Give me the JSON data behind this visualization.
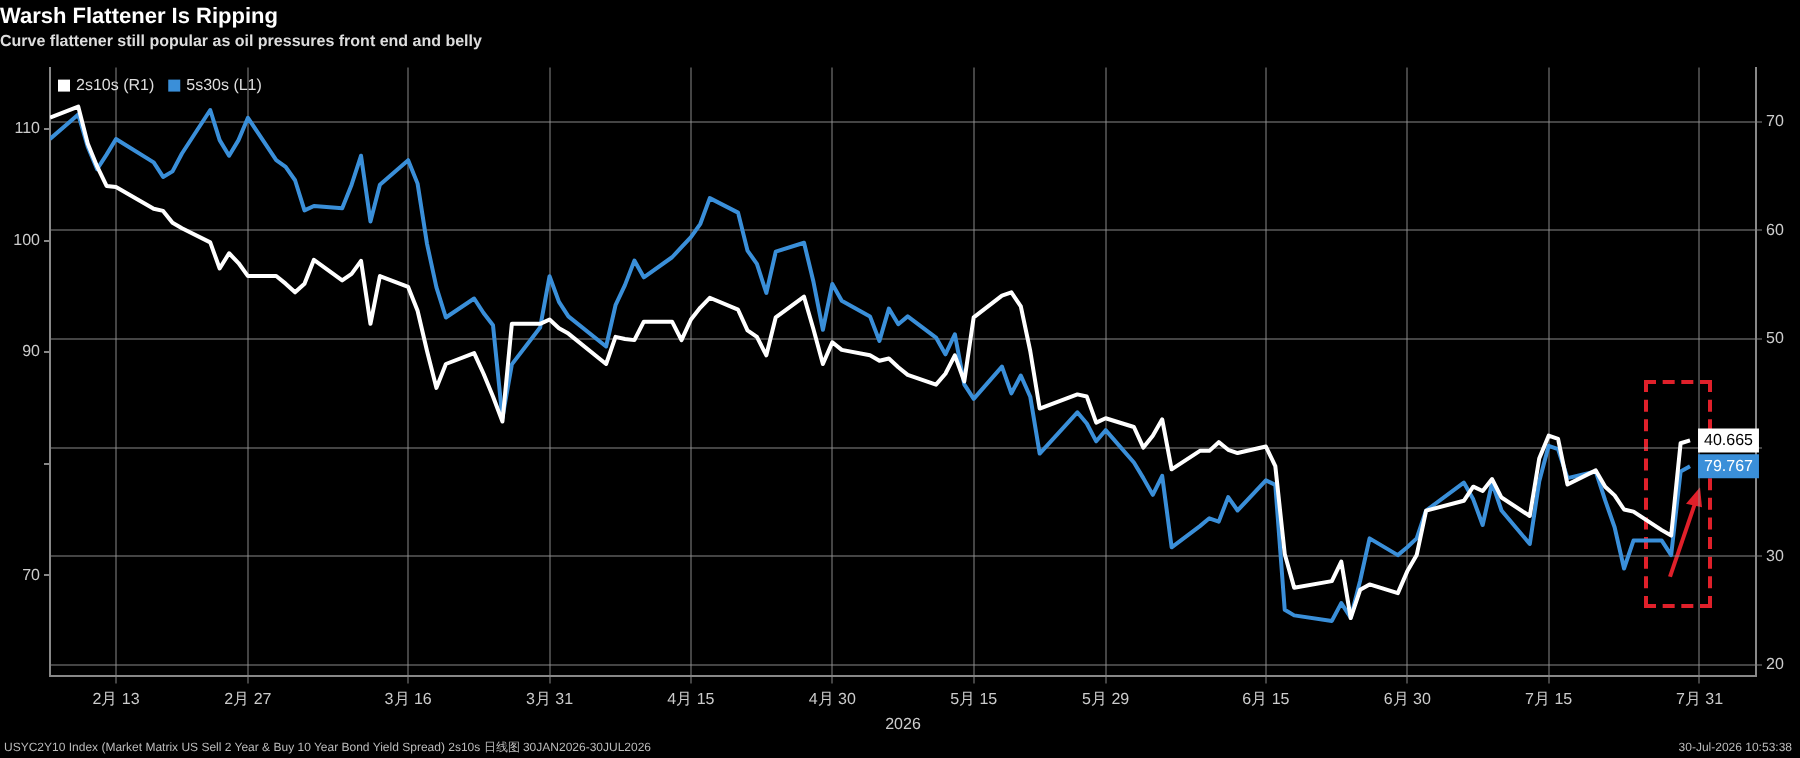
{
  "chart_data": {
    "type": "line",
    "title": "Warsh Flattener Is Ripping",
    "subtitle": "Curve flattener still popular as oil pressures front end and belly",
    "xlabel": "2026",
    "annotations": [
      "USYC2Y10 Index (Market Matrix US Sell 2 Year & Buy 10 Year Bond Yield Spread) 2s10s 日线图 30JAN2026-30JUL2026",
      "30-Jul-2026 10:53:38"
    ],
    "x": [
      "2026-02-06",
      "2026-02-09",
      "2026-02-10",
      "2026-02-11",
      "2026-02-12",
      "2026-02-13",
      "2026-02-17",
      "2026-02-18",
      "2026-02-19",
      "2026-02-20",
      "2026-02-23",
      "2026-02-24",
      "2026-02-25",
      "2026-02-26",
      "2026-02-27",
      "2026-03-02",
      "2026-03-03",
      "2026-03-04",
      "2026-03-05",
      "2026-03-06",
      "2026-03-09",
      "2026-03-10",
      "2026-03-11",
      "2026-03-12",
      "2026-03-13",
      "2026-03-16",
      "2026-03-17",
      "2026-03-18",
      "2026-03-19",
      "2026-03-20",
      "2026-03-23",
      "2026-03-24",
      "2026-03-25",
      "2026-03-26",
      "2026-03-27",
      "2026-03-30",
      "2026-03-31",
      "2026-04-01",
      "2026-04-02",
      "2026-04-06",
      "2026-04-07",
      "2026-04-08",
      "2026-04-09",
      "2026-04-10",
      "2026-04-13",
      "2026-04-14",
      "2026-04-15",
      "2026-04-16",
      "2026-04-17",
      "2026-04-20",
      "2026-04-21",
      "2026-04-22",
      "2026-04-23",
      "2026-04-24",
      "2026-04-27",
      "2026-04-28",
      "2026-04-29",
      "2026-04-30",
      "2026-05-01",
      "2026-05-04",
      "2026-05-05",
      "2026-05-06",
      "2026-05-07",
      "2026-05-08",
      "2026-05-11",
      "2026-05-12",
      "2026-05-13",
      "2026-05-14",
      "2026-05-15",
      "2026-05-18",
      "2026-05-19",
      "2026-05-20",
      "2026-05-21",
      "2026-05-22",
      "2026-05-26",
      "2026-05-27",
      "2026-05-28",
      "2026-05-29",
      "2026-06-01",
      "2026-06-02",
      "2026-06-03",
      "2026-06-04",
      "2026-06-05",
      "2026-06-08",
      "2026-06-09",
      "2026-06-10",
      "2026-06-11",
      "2026-06-12",
      "2026-06-15",
      "2026-06-16",
      "2026-06-17",
      "2026-06-18",
      "2026-06-22",
      "2026-06-23",
      "2026-06-24",
      "2026-06-25",
      "2026-06-26",
      "2026-06-29",
      "2026-06-30",
      "2026-07-01",
      "2026-07-02",
      "2026-07-06",
      "2026-07-07",
      "2026-07-08",
      "2026-07-09",
      "2026-07-10",
      "2026-07-13",
      "2026-07-14",
      "2026-07-15",
      "2026-07-16",
      "2026-07-17",
      "2026-07-20",
      "2026-07-21",
      "2026-07-22",
      "2026-07-23",
      "2026-07-24",
      "2026-07-27",
      "2026-07-28",
      "2026-07-29",
      "2026-07-30"
    ],
    "xlim": [
      "2026-02-06",
      "2026-08-06"
    ],
    "xticks": [
      {
        "value": "2026-02-13",
        "label": "2月 13"
      },
      {
        "value": "2026-02-27",
        "label": "2月 27"
      },
      {
        "value": "2026-03-16",
        "label": "3月 16"
      },
      {
        "value": "2026-03-31",
        "label": "3月 31"
      },
      {
        "value": "2026-04-15",
        "label": "4月 15"
      },
      {
        "value": "2026-04-30",
        "label": "4月 30"
      },
      {
        "value": "2026-05-15",
        "label": "5月 15"
      },
      {
        "value": "2026-05-29",
        "label": "5月 29"
      },
      {
        "value": "2026-06-15",
        "label": "6月 15"
      },
      {
        "value": "2026-06-30",
        "label": "6月 30"
      },
      {
        "value": "2026-07-15",
        "label": "7月 15"
      },
      {
        "value": "2026-07-31",
        "label": "7月 31"
      }
    ],
    "ylim": [
      61,
      115.5
    ],
    "yticks": [
      70,
      {
        "value": 80,
        "label": null
      },
      90,
      100,
      110
    ],
    "y2lim": [
      19,
      75
    ],
    "y2ticks": [
      20,
      30,
      {
        "value": 40,
        "label": null
      },
      50,
      60,
      70
    ],
    "grid": true,
    "legend": "top left",
    "marker": "none",
    "line_style": "solid",
    "series": [
      {
        "name": "2s10s (R1)",
        "color": "#ffffff",
        "axis": "y2",
        "values": [
          70.4,
          71.4,
          68.0,
          65.9,
          64.1,
          64.0,
          62.0,
          61.8,
          60.7,
          60.2,
          58.9,
          56.5,
          57.9,
          57.0,
          55.8,
          55.8,
          55.1,
          54.3,
          55.1,
          57.3,
          55.4,
          56.0,
          57.2,
          51.4,
          55.8,
          54.8,
          52.6,
          48.9,
          45.5,
          47.7,
          48.7,
          46.8,
          44.7,
          42.4,
          51.4,
          51.4,
          51.8,
          51.0,
          50.5,
          47.7,
          50.2,
          50.0,
          49.9,
          51.6,
          51.6,
          49.9,
          51.8,
          52.9,
          53.8,
          52.7,
          50.8,
          50.2,
          48.5,
          52.0,
          53.9,
          50.9,
          47.7,
          49.7,
          49.0,
          48.5,
          48.0,
          48.2,
          47.4,
          46.7,
          45.8,
          46.8,
          48.5,
          46.1,
          52.0,
          54.0,
          54.3,
          53.0,
          48.9,
          43.6,
          44.9,
          44.7,
          42.3,
          42.7,
          41.9,
          40.0,
          41.1,
          42.6,
          38.0,
          39.7,
          39.7,
          40.5,
          39.8,
          39.5,
          40.1,
          38.3,
          30.2,
          27.1,
          27.7,
          29.5,
          24.3,
          26.9,
          27.4,
          26.6,
          28.6,
          30.1,
          34.2,
          35.1,
          36.4,
          36.0,
          37.1,
          35.4,
          33.7,
          39.0,
          41.1,
          40.8,
          36.6,
          37.9,
          36.4,
          35.6,
          34.3,
          34.1,
          32.4,
          31.9,
          40.4,
          40.665
        ],
        "value_labels": [
          null,
          null,
          null,
          null,
          null,
          null,
          null,
          null,
          null,
          null,
          null,
          null,
          null,
          null,
          null,
          null,
          null,
          null,
          null,
          null,
          null,
          null,
          null,
          null,
          null,
          null,
          null,
          null,
          null,
          null,
          null,
          null,
          null,
          null,
          null,
          null,
          null,
          null,
          null,
          null,
          null,
          null,
          null,
          null,
          null,
          null,
          null,
          null,
          null,
          null,
          null,
          null,
          null,
          null,
          null,
          null,
          null,
          null,
          null,
          null,
          null,
          null,
          null,
          null,
          null,
          null,
          null,
          null,
          null,
          null,
          null,
          null,
          null,
          null,
          null,
          null,
          null,
          null,
          null,
          null,
          null,
          null,
          null,
          null,
          null,
          null,
          null,
          null,
          null,
          null,
          null,
          null,
          null,
          null,
          null,
          null,
          null,
          null,
          null,
          null,
          null,
          null,
          null,
          null,
          null,
          null,
          null,
          null,
          null,
          null,
          null,
          null,
          null,
          null,
          null,
          null,
          null,
          null,
          null,
          "40.665"
        ]
      },
      {
        "name": "5s30s (L1)",
        "color": "#3a8fd9",
        "axis": "y",
        "values": [
          109.1,
          111.3,
          108.4,
          106.4,
          107.7,
          109.1,
          107.0,
          105.7,
          106.2,
          107.8,
          111.7,
          109.0,
          107.6,
          109.0,
          111.0,
          107.2,
          106.6,
          105.4,
          102.7,
          103.1,
          102.9,
          105.0,
          107.6,
          101.7,
          105.0,
          107.2,
          105.1,
          99.7,
          95.8,
          93.1,
          94.8,
          93.5,
          92.4,
          84.1,
          88.9,
          92.2,
          96.8,
          94.5,
          93.2,
          90.5,
          94.2,
          96.0,
          98.2,
          96.7,
          98.5,
          99.4,
          100.3,
          101.5,
          103.8,
          102.5,
          99.1,
          97.9,
          95.3,
          99.0,
          99.8,
          96.3,
          92.0,
          96.1,
          94.6,
          93.2,
          91.0,
          93.9,
          92.5,
          93.2,
          91.3,
          89.8,
          91.6,
          87.1,
          85.8,
          88.7,
          86.3,
          87.9,
          86.0,
          80.9,
          84.6,
          83.6,
          82.0,
          83.0,
          80.1,
          78.7,
          77.2,
          78.9,
          72.5,
          74.4,
          75.1,
          74.8,
          77.0,
          75.8,
          78.5,
          78.1,
          66.9,
          66.4,
          65.9,
          67.5,
          66.2,
          69.5,
          73.3,
          71.8,
          72.5,
          73.3,
          75.8,
          78.3,
          76.8,
          74.5,
          78.3,
          75.8,
          72.8,
          78.4,
          81.6,
          81.3,
          78.7,
          79.3,
          76.7,
          74.3,
          70.6,
          73.1,
          73.1,
          71.8,
          79.3,
          79.767
        ],
        "value_labels": [
          null,
          null,
          null,
          null,
          null,
          null,
          null,
          null,
          null,
          null,
          null,
          null,
          null,
          null,
          null,
          null,
          null,
          null,
          null,
          null,
          null,
          null,
          null,
          null,
          null,
          null,
          null,
          null,
          null,
          null,
          null,
          null,
          null,
          null,
          null,
          null,
          null,
          null,
          null,
          null,
          null,
          null,
          null,
          null,
          null,
          null,
          null,
          null,
          null,
          null,
          null,
          null,
          null,
          null,
          null,
          null,
          null,
          null,
          null,
          null,
          null,
          null,
          null,
          null,
          null,
          null,
          null,
          null,
          null,
          null,
          null,
          null,
          null,
          null,
          null,
          null,
          null,
          null,
          null,
          null,
          null,
          null,
          null,
          null,
          null,
          null,
          null,
          null,
          null,
          null,
          null,
          null,
          null,
          null,
          null,
          null,
          null,
          null,
          null,
          null,
          null,
          null,
          null,
          null,
          null,
          null,
          null,
          null,
          null,
          null,
          null,
          null,
          null,
          null,
          null,
          null,
          null,
          null,
          null,
          "79.767"
        ]
      }
    ]
  }
}
